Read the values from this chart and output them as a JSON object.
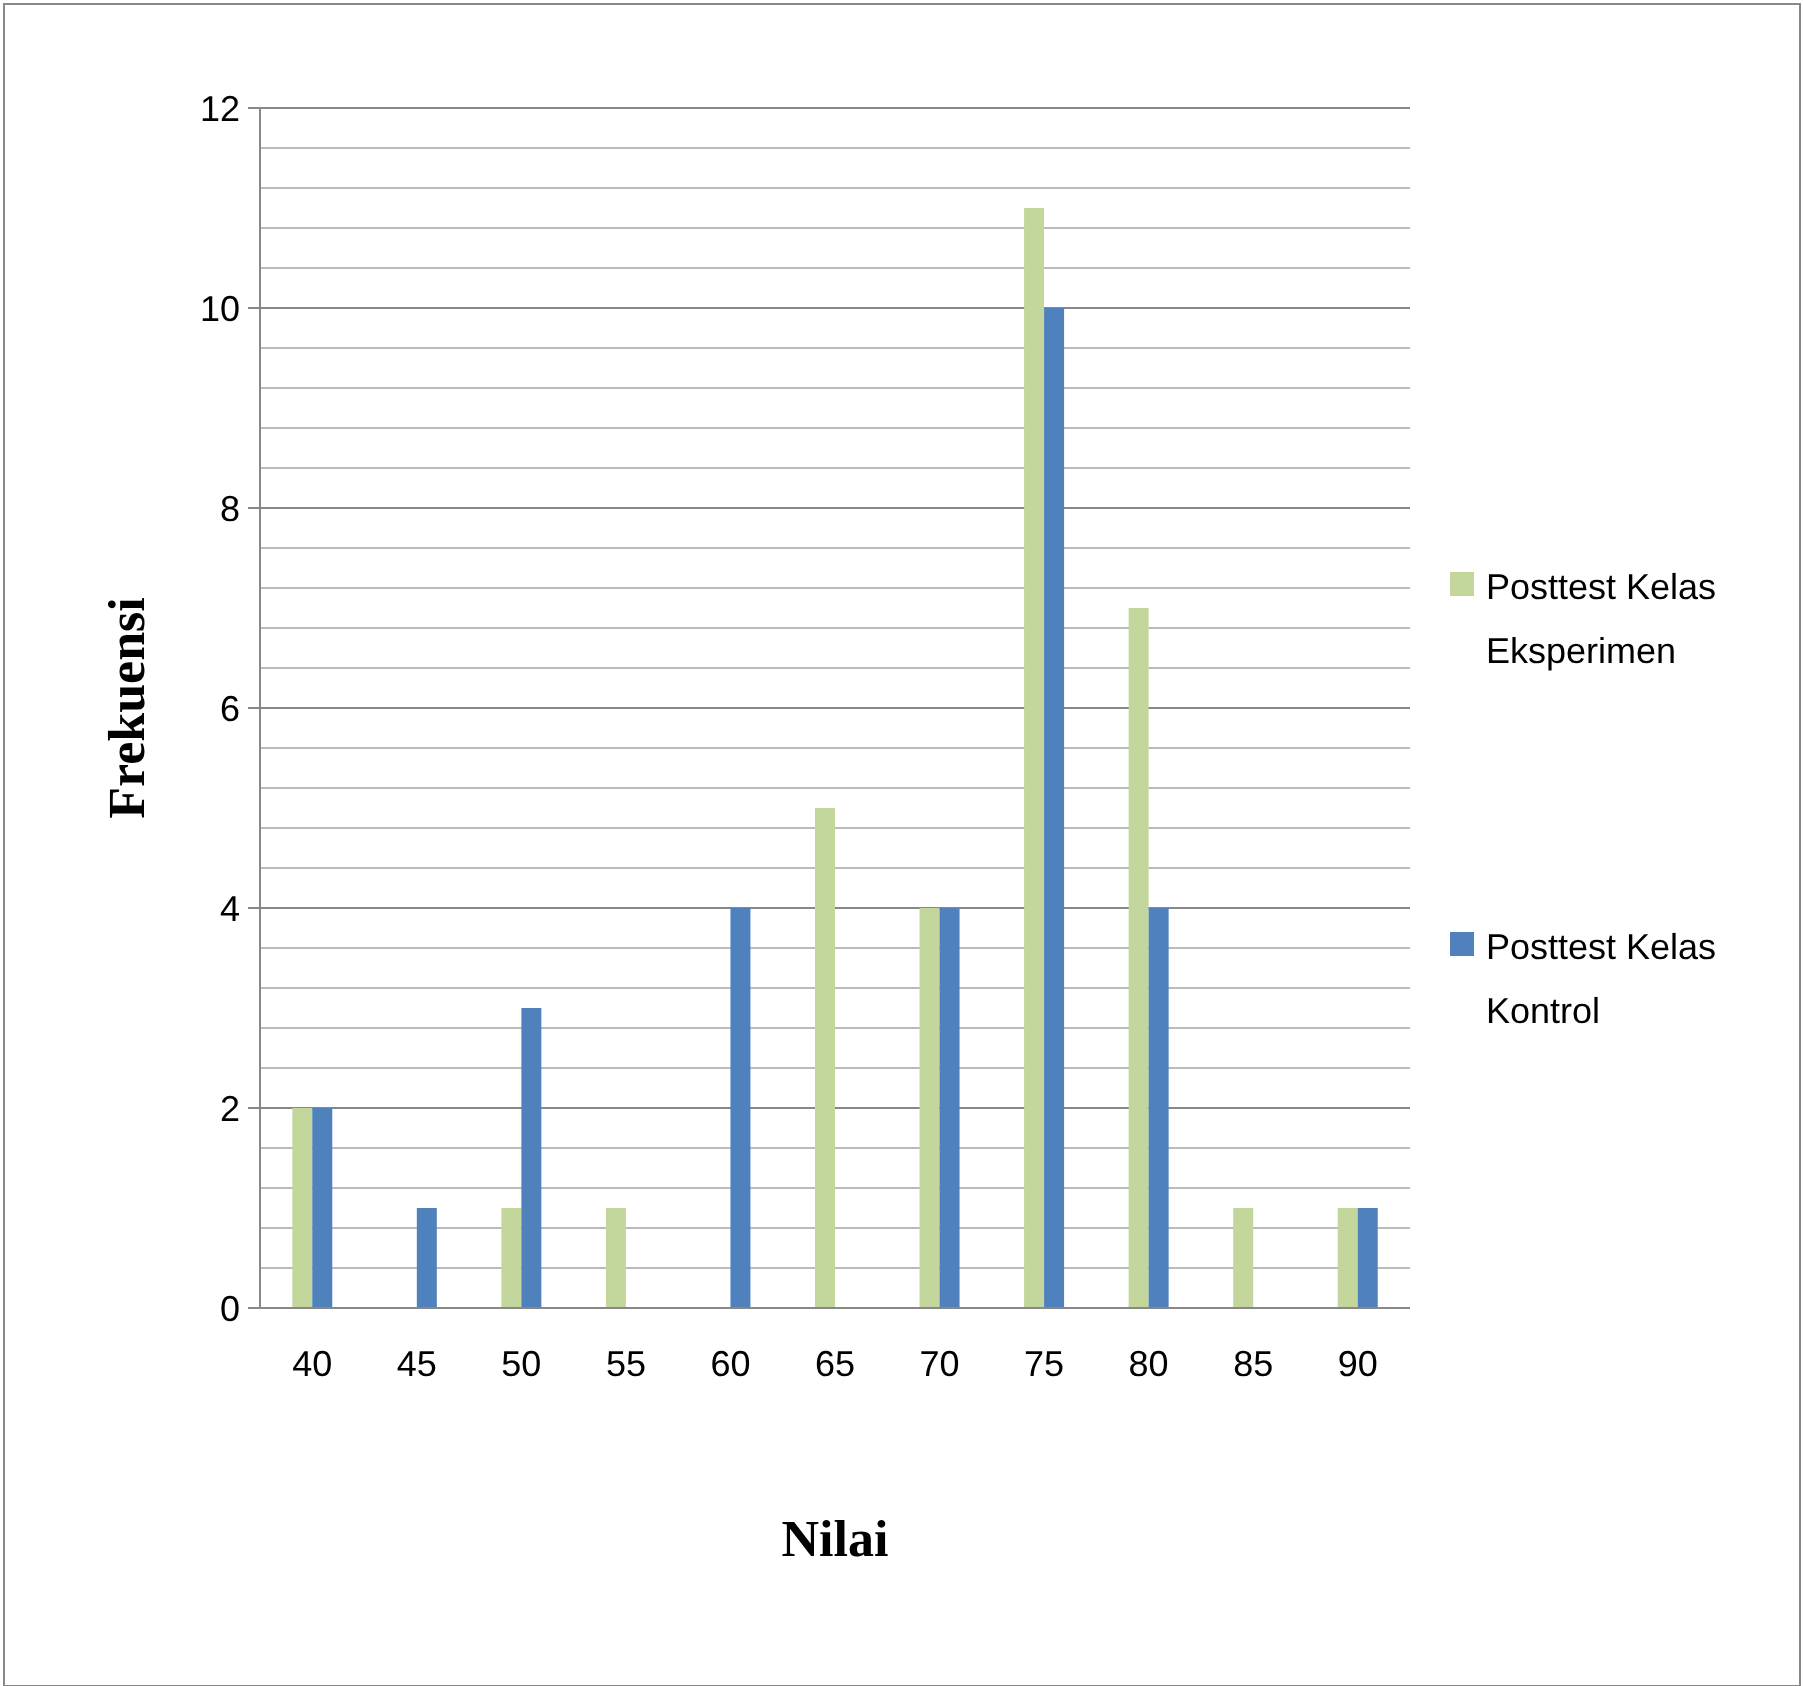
{
  "chart_data": {
    "type": "bar",
    "xlabel": "Nilai",
    "ylabel": "Frekuensi",
    "categories": [
      "40",
      "45",
      "50",
      "55",
      "60",
      "65",
      "70",
      "75",
      "80",
      "85",
      "90"
    ],
    "series": [
      {
        "name": "Posttest Kelas Eksperimen",
        "color": "#c3d69b",
        "values": [
          2,
          0,
          1,
          1,
          0,
          5,
          4,
          11,
          7,
          1,
          1
        ]
      },
      {
        "name": "Posttest Kelas Kontrol",
        "color": "#4f81bd",
        "values": [
          2,
          1,
          3,
          0,
          4,
          0,
          4,
          10,
          4,
          0,
          1
        ]
      }
    ],
    "ylim": [
      0,
      12
    ],
    "yticks": [
      0,
      {
        "value": 0.4,
        "label": null
      },
      {
        "value": 0.8,
        "label": null
      },
      {
        "value": 1.2,
        "label": null
      },
      {
        "value": 1.6,
        "label": null
      },
      2,
      {
        "value": 2.4,
        "label": null
      },
      {
        "value": 2.8,
        "label": null
      },
      {
        "value": 3.2,
        "label": null
      },
      {
        "value": 3.6,
        "label": null
      },
      4,
      {
        "value": 4.4,
        "label": null
      },
      {
        "value": 4.8,
        "label": null
      },
      {
        "value": 5.2,
        "label": null
      },
      {
        "value": 5.6,
        "label": null
      },
      6,
      {
        "value": 6.4,
        "label": null
      },
      {
        "value": 6.8,
        "label": null
      },
      {
        "value": 7.2,
        "label": null
      },
      {
        "value": 7.6,
        "label": null
      },
      8,
      {
        "value": 8.4,
        "label": null
      },
      {
        "value": 8.8,
        "label": null
      },
      {
        "value": 9.2,
        "label": null
      },
      {
        "value": 9.6,
        "label": null
      },
      10,
      {
        "value": 10.4,
        "label": null
      },
      {
        "value": 10.8,
        "label": null
      },
      {
        "value": 11.2,
        "label": null
      },
      {
        "value": 11.6,
        "label": null
      },
      12
    ],
    "grid": "y",
    "legend": "right"
  }
}
